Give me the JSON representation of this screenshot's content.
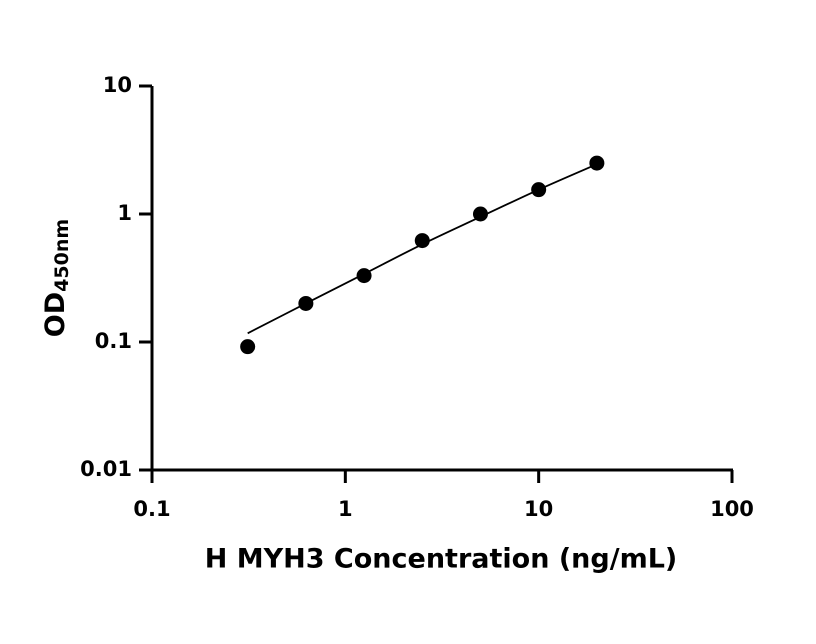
{
  "chart_data": {
    "type": "scatter",
    "x_label": "H MYH3 Concentration (ng/mL)",
    "y_label": "OD",
    "y_label_subscript": "450nm",
    "x": [
      0.3125,
      0.625,
      1.25,
      2.5,
      5,
      10,
      20
    ],
    "series": [
      {
        "color": "#000000",
        "values": [
          0.092,
          0.2,
          0.33,
          0.62,
          1.0,
          1.55,
          2.5
        ]
      }
    ],
    "fit": {
      "color": "#000000",
      "x": [
        0.3125,
        0.625,
        1.25,
        2.5,
        5,
        10,
        20
      ],
      "values": [
        0.117,
        0.2,
        0.34,
        0.58,
        0.95,
        1.55,
        2.45
      ]
    },
    "xscale": "log",
    "yscale": "log",
    "xlim": [
      0.1,
      100
    ],
    "ylim": [
      0.01,
      10
    ],
    "xticks": [
      0.1,
      1,
      10,
      100
    ],
    "yticks": [
      0.01,
      0.1,
      1,
      10
    ],
    "grid": false
  }
}
